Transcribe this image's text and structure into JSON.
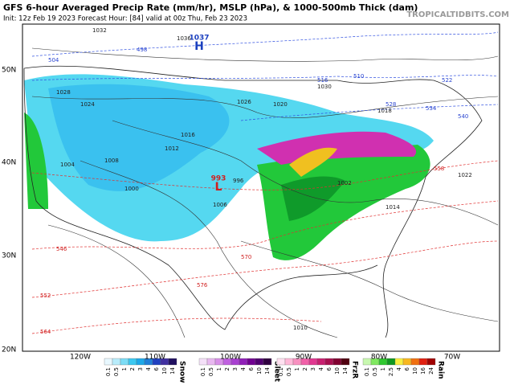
{
  "header": {
    "title": "GFS 6-hour Averaged Precip Rate (mm/hr), MSLP (hPa), & 1000-500mb Thick (dam)",
    "subtitle": "Init: 12z Feb 19 2023   Forecast Hour: [84]   valid at 00z Thu, Feb 23 2023",
    "source": "TROPICALTIDBITS.COM"
  },
  "lat_labels": [
    "50N",
    "40N",
    "30N",
    "20N"
  ],
  "lon_labels": [
    "120W",
    "110W",
    "100W",
    "90W",
    "80W",
    "70W"
  ],
  "centers": [
    {
      "symbol": "H",
      "value": "1037"
    },
    {
      "symbol": "L",
      "value": "993"
    }
  ],
  "isobar_labels": [
    "1032",
    "1024",
    "1028",
    "1036",
    "1030",
    "1026",
    "1020",
    "1016",
    "1012",
    "1008",
    "1004",
    "1000",
    "996",
    "1002",
    "1014",
    "1022",
    "1010",
    "1018",
    "1006"
  ],
  "thickness_labels": [
    "498",
    "504",
    "510",
    "516",
    "522",
    "528",
    "534",
    "540",
    "546",
    "552",
    "558",
    "564",
    "570",
    "576"
  ],
  "legend": [
    {
      "name": "Snow",
      "ticks": [
        "0.1",
        "0.5",
        "1",
        "2",
        "3",
        "4",
        "6",
        "10",
        "14"
      ]
    },
    {
      "name": "Sleet",
      "ticks": [
        "0.1",
        "0.5",
        "1",
        "2",
        "3",
        "4",
        "6",
        "10",
        "14"
      ]
    },
    {
      "name": "FrzR",
      "ticks": [
        "0.1",
        "0.5",
        "1",
        "2",
        "3",
        "4",
        "6",
        "10",
        "14"
      ]
    },
    {
      "name": "Rain",
      "ticks": [
        "0.1",
        "0.5",
        "1",
        "2.5",
        "4",
        "6",
        "10",
        "16",
        "24"
      ]
    }
  ]
}
